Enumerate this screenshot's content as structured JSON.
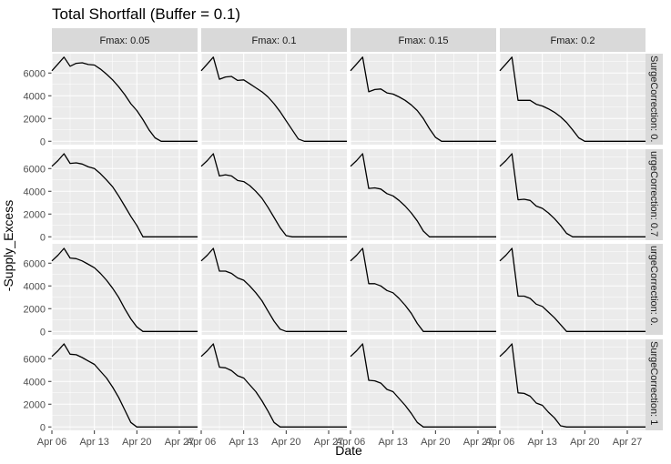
{
  "chart_data": {
    "type": "line",
    "title": "Total Shortfall (Buffer = 0.1)",
    "xlabel": "Date",
    "ylabel": "-Supply_Excess",
    "x_ticks": [
      "Apr 06",
      "Apr 13",
      "Apr 20",
      "Apr 27"
    ],
    "x_tick_dates": [
      "2020-04-06",
      "2020-04-13",
      "2020-04-20",
      "2020-04-27"
    ],
    "xlim": [
      "2020-04-06",
      "2020-04-30"
    ],
    "y_ticks": [
      0,
      2000,
      4000,
      6000
    ],
    "ylim": [
      -300,
      7700
    ],
    "grid": true,
    "col_facet_labels": [
      "Fmax: 0.05",
      "Fmax: 0.1",
      "Fmax: 0.15",
      "Fmax: 0.2"
    ],
    "row_facet_labels": [
      "SurgeCorrection: 0.",
      "urgeCorrection: 0.7",
      "urgeCorrection: 0.",
      "SurgeCorrection: 1"
    ],
    "dates": [
      "2020-04-06",
      "2020-04-07",
      "2020-04-08",
      "2020-04-09",
      "2020-04-10",
      "2020-04-11",
      "2020-04-12",
      "2020-04-13",
      "2020-04-14",
      "2020-04-15",
      "2020-04-16",
      "2020-04-17",
      "2020-04-18",
      "2020-04-19",
      "2020-04-20",
      "2020-04-21",
      "2020-04-22",
      "2020-04-23",
      "2020-04-24",
      "2020-04-25",
      "2020-04-26",
      "2020-04-27",
      "2020-04-28",
      "2020-04-29",
      "2020-04-30"
    ],
    "panels": [
      [
        {
          "values": [
            6200,
            6800,
            7400,
            6600,
            6850,
            6900,
            6750,
            6700,
            6350,
            5900,
            5400,
            4800,
            4100,
            3300,
            2700,
            1900,
            1000,
            300,
            0,
            0,
            0,
            0,
            0,
            0,
            0
          ]
        },
        {
          "values": [
            6200,
            6800,
            7400,
            5450,
            5650,
            5700,
            5350,
            5400,
            5050,
            4700,
            4350,
            3900,
            3300,
            2600,
            1800,
            1000,
            200,
            0,
            0,
            0,
            0,
            0,
            0,
            0,
            0
          ]
        },
        {
          "values": [
            6200,
            6800,
            7400,
            4350,
            4550,
            4600,
            4250,
            4150,
            3900,
            3600,
            3200,
            2700,
            2000,
            1100,
            350,
            0,
            0,
            0,
            0,
            0,
            0,
            0,
            0,
            0,
            0
          ]
        },
        {
          "values": [
            6200,
            6800,
            7400,
            3600,
            3600,
            3600,
            3250,
            3100,
            2850,
            2550,
            2150,
            1650,
            1000,
            300,
            0,
            0,
            0,
            0,
            0,
            0,
            0,
            0,
            0,
            0,
            0
          ]
        }
      ],
      [
        {
          "values": [
            6200,
            6700,
            7300,
            6450,
            6500,
            6400,
            6150,
            6000,
            5550,
            5000,
            4400,
            3600,
            2700,
            1800,
            1000,
            0,
            0,
            0,
            0,
            0,
            0,
            0,
            0,
            0,
            0
          ]
        },
        {
          "values": [
            6200,
            6700,
            7300,
            5350,
            5450,
            5350,
            4950,
            4850,
            4500,
            4000,
            3400,
            2600,
            1700,
            800,
            100,
            0,
            0,
            0,
            0,
            0,
            0,
            0,
            0,
            0,
            0
          ]
        },
        {
          "values": [
            6200,
            6700,
            7300,
            4250,
            4300,
            4200,
            3800,
            3600,
            3200,
            2700,
            2100,
            1400,
            500,
            0,
            0,
            0,
            0,
            0,
            0,
            0,
            0,
            0,
            0,
            0,
            0
          ]
        },
        {
          "values": [
            6200,
            6700,
            7300,
            3250,
            3300,
            3200,
            2700,
            2500,
            2100,
            1600,
            1000,
            300,
            0,
            0,
            0,
            0,
            0,
            0,
            0,
            0,
            0,
            0,
            0,
            0,
            0
          ]
        }
      ],
      [
        {
          "values": [
            6200,
            6700,
            7300,
            6450,
            6400,
            6200,
            5900,
            5600,
            5100,
            4500,
            3800,
            3000,
            2000,
            1100,
            400,
            0,
            0,
            0,
            0,
            0,
            0,
            0,
            0,
            0,
            0
          ]
        },
        {
          "values": [
            6200,
            6700,
            7300,
            5300,
            5300,
            5100,
            4700,
            4500,
            4000,
            3400,
            2700,
            1800,
            900,
            200,
            0,
            0,
            0,
            0,
            0,
            0,
            0,
            0,
            0,
            0,
            0
          ]
        },
        {
          "values": [
            6200,
            6700,
            7300,
            4200,
            4200,
            4000,
            3600,
            3400,
            2900,
            2300,
            1600,
            700,
            0,
            0,
            0,
            0,
            0,
            0,
            0,
            0,
            0,
            0,
            0,
            0,
            0
          ]
        },
        {
          "values": [
            6200,
            6700,
            7300,
            3100,
            3100,
            2900,
            2400,
            2200,
            1700,
            1200,
            600,
            0,
            0,
            0,
            0,
            0,
            0,
            0,
            0,
            0,
            0,
            0,
            0,
            0,
            0
          ]
        }
      ],
      [
        {
          "values": [
            6200,
            6700,
            7300,
            6400,
            6350,
            6100,
            5800,
            5500,
            4900,
            4300,
            3500,
            2600,
            1500,
            400,
            0,
            0,
            0,
            0,
            0,
            0,
            0,
            0,
            0,
            0,
            0
          ]
        },
        {
          "values": [
            6200,
            6700,
            7300,
            5250,
            5200,
            4950,
            4500,
            4300,
            3700,
            3100,
            2300,
            1400,
            400,
            0,
            0,
            0,
            0,
            0,
            0,
            0,
            0,
            0,
            0,
            0,
            0
          ]
        },
        {
          "values": [
            6200,
            6700,
            7300,
            4100,
            4050,
            3850,
            3300,
            3100,
            2500,
            1900,
            1200,
            400,
            0,
            0,
            0,
            0,
            0,
            0,
            0,
            0,
            0,
            0,
            0,
            0,
            0
          ]
        },
        {
          "values": [
            6200,
            6700,
            7300,
            3000,
            2950,
            2700,
            2100,
            1900,
            1300,
            800,
            100,
            0,
            0,
            0,
            0,
            0,
            0,
            0,
            0,
            0,
            0,
            0,
            0,
            0,
            0
          ]
        }
      ]
    ]
  }
}
